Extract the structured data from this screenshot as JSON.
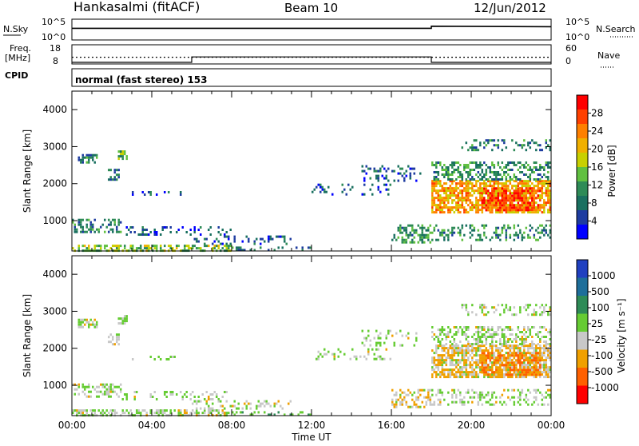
{
  "header": {
    "station": "Hankasalmi (fitACF)",
    "beam": "Beam 10",
    "date": "12/Jun/2012"
  },
  "top_panels": {
    "nsky_label": "N.Sky",
    "nsearch_label": "N.Search",
    "noise_ticks_left": [
      "10^5",
      "10^0"
    ],
    "noise_ticks_right": [
      "10^5",
      "10^0"
    ],
    "freq_label_1": "Freq.",
    "freq_label_2": "[MHz]",
    "freq_ticks": [
      "18",
      "8"
    ],
    "nave_label": "Nave",
    "nave_ticks": [
      "60",
      "0"
    ],
    "cpid_label": "CPID",
    "cpid_text": "normal (fast stereo) 153"
  },
  "x_axis": {
    "title": "Time UT",
    "tick_labels": [
      "00:00",
      "04:00",
      "08:00",
      "12:00",
      "16:00",
      "20:00",
      "00:00"
    ]
  },
  "power_panel": {
    "ylabel": "Slant Range [km]",
    "yticks": [
      "4000",
      "3000",
      "2000",
      "1000"
    ],
    "colorbar_label": "Power [dB]",
    "colorbar_ticks": [
      "28",
      "24",
      "20",
      "16",
      "12",
      "8",
      "4"
    ],
    "colorbar_colors": [
      "#ff0000",
      "#ff4000",
      "#ff8000",
      "#f0b000",
      "#c8d000",
      "#60c040",
      "#2e8b57",
      "#1a7060",
      "#1e3ca0",
      "#0000ff"
    ]
  },
  "velocity_panel": {
    "ylabel": "Slant Range [km]",
    "yticks": [
      "4000",
      "3000",
      "2000",
      "1000"
    ],
    "colorbar_label": "Velocity  [m s⁻¹]",
    "colorbar_ticks": [
      "1000",
      "500",
      "100",
      "25",
      "-25",
      "-100",
      "-500",
      "-1000"
    ],
    "colorbar_colors": [
      "#2040c0",
      "#1e6e9a",
      "#2e8b57",
      "#66cc33",
      "#c8c8c8",
      "#f0a000",
      "#ff6000",
      "#ff0000"
    ]
  },
  "chart_data": {
    "type": "heatmap",
    "x_range_hours": [
      0,
      24
    ],
    "y_range_km": [
      180,
      4500
    ],
    "noise_log_range": [
      0,
      5
    ],
    "noise_sky_level": [
      [
        0,
        2.8
      ],
      [
        18,
        2.8
      ],
      [
        18,
        3.3
      ],
      [
        24,
        3.2
      ]
    ],
    "frequency_mhz": 11.5,
    "nave_level": [
      [
        0,
        5
      ],
      [
        6,
        5
      ],
      [
        6,
        22
      ],
      [
        18,
        22
      ],
      [
        18,
        5
      ],
      [
        24,
        5
      ]
    ],
    "freq_range_mhz": [
      8,
      18
    ],
    "nave_range": [
      0,
      60
    ],
    "scatter_regions": [
      {
        "t0": 0.0,
        "t1": 8.0,
        "r0": 180,
        "r1": 350,
        "p": 14,
        "v": 25,
        "d": 0.6
      },
      {
        "t0": 0.3,
        "t1": 1.3,
        "r0": 2600,
        "r1": 2800,
        "p": 8,
        "v": 25,
        "d": 0.6
      },
      {
        "t0": 2.3,
        "t1": 2.8,
        "r0": 2650,
        "r1": 2900,
        "p": 12,
        "v": 25,
        "d": 0.5
      },
      {
        "t0": 0.0,
        "t1": 2.5,
        "r0": 700,
        "r1": 1050,
        "p": 8,
        "v": 25,
        "d": 0.45
      },
      {
        "t0": 2.5,
        "t1": 8.0,
        "r0": 600,
        "r1": 850,
        "p": 6,
        "v": 25,
        "d": 0.2
      },
      {
        "t0": 6.0,
        "t1": 11.0,
        "r0": 400,
        "r1": 600,
        "p": 6,
        "v": 25,
        "d": 0.25
      },
      {
        "t0": 1.8,
        "t1": 2.4,
        "r0": 2100,
        "r1": 2400,
        "p": 8,
        "v": 25,
        "d": 0.4
      },
      {
        "t0": 3.0,
        "t1": 5.5,
        "r0": 1700,
        "r1": 1800,
        "p": 6,
        "v": 25,
        "d": 0.2
      },
      {
        "t0": 12.0,
        "t1": 16.0,
        "r0": 1700,
        "r1": 2000,
        "p": 6,
        "v": 25,
        "d": 0.2
      },
      {
        "t0": 14.5,
        "t1": 17.5,
        "r0": 2100,
        "r1": 2500,
        "p": 6,
        "v": 25,
        "d": 0.25
      },
      {
        "t0": 16.0,
        "t1": 18.0,
        "r0": 400,
        "r1": 900,
        "p": 10,
        "v": -25,
        "d": 0.45
      },
      {
        "t0": 18.0,
        "t1": 24.0,
        "r0": 1200,
        "r1": 2100,
        "p": 20,
        "v": -25,
        "d": 0.75
      },
      {
        "t0": 20.5,
        "t1": 23.5,
        "r0": 1300,
        "r1": 1900,
        "p": 26,
        "v": -100,
        "d": 0.6
      },
      {
        "t0": 18.0,
        "t1": 24.0,
        "r0": 2100,
        "r1": 2600,
        "p": 10,
        "v": 25,
        "d": 0.45
      },
      {
        "t0": 19.5,
        "t1": 24.0,
        "r0": 2900,
        "r1": 3200,
        "p": 8,
        "v": 25,
        "d": 0.3
      },
      {
        "t0": 18.0,
        "t1": 24.0,
        "r0": 500,
        "r1": 900,
        "p": 10,
        "v": 25,
        "d": 0.3
      },
      {
        "t0": 8.0,
        "t1": 12.0,
        "r0": 180,
        "r1": 300,
        "p": 8,
        "v": 100,
        "d": 0.25
      }
    ]
  }
}
